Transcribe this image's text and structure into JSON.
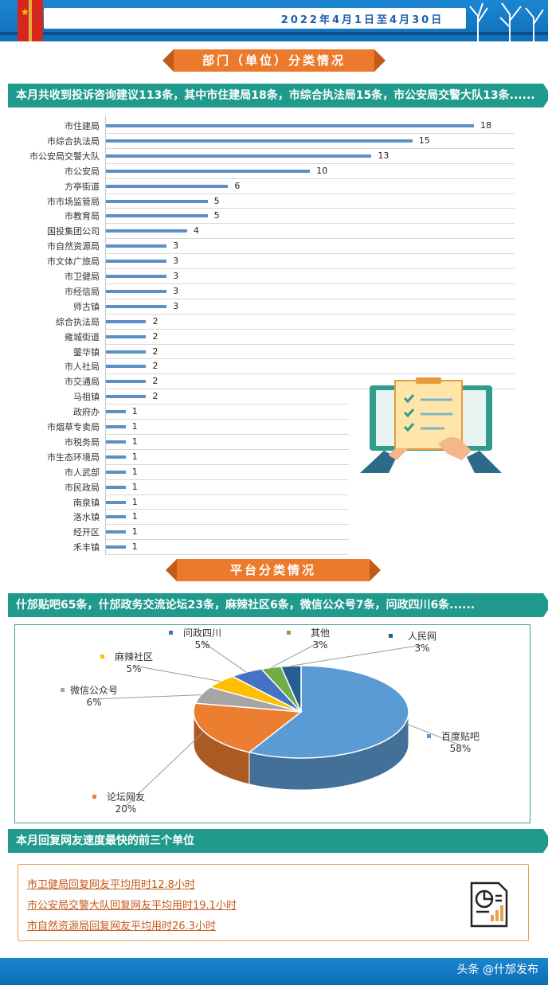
{
  "header": {
    "date": "2022年4月1日至4月30日"
  },
  "section1": {
    "banner": "部门（单位）分类情况",
    "summary": "本月共收到投诉咨询建议113条，其中市住建局18条，市综合执法局15条，市公安局交警大队13条......"
  },
  "section2": {
    "banner": "平台分类情况",
    "summary": "什邡贴吧65条，什邡政务交流论坛23条，麻辣社区6条，微信公众号7条，问政四川6条......"
  },
  "section3": {
    "title": "本月回复网友速度最快的前三个单位",
    "items": [
      "市卫健局回复网友平均用时12.8小时",
      "市公安局交警大队回复网友平均用时19.1小时",
      "市自然资源局回复网友平均用时26.3小时"
    ]
  },
  "footer": {
    "watermark": "头条 @什邡发布"
  },
  "colors": {
    "bar": "#5b8fc7",
    "teal": "#1f9a8c",
    "orange": "#ec7a2c"
  },
  "chart_data": [
    {
      "type": "bar",
      "orientation": "horizontal",
      "categories": [
        "市住建局",
        "市综合执法局",
        "市公安局交警大队",
        "市公安局",
        "方亭街道",
        "市市场监管局",
        "市教育局",
        "国投集团公司",
        "市自然资源局",
        "市文体广旅局",
        "市卫健局",
        "市经信局",
        "师古镇",
        "综合执法局",
        "雍城街道",
        "蓥华镇",
        "市人社局",
        "市交通局",
        "马祖镇",
        "政府办",
        "市烟草专卖局",
        "市税务局",
        "市生态环境局",
        "市人武部",
        "市民政局",
        "南泉镇",
        "洛水镇",
        "经开区",
        "禾丰镇"
      ],
      "values": [
        18,
        15,
        13,
        10,
        6,
        5,
        5,
        4,
        3,
        3,
        3,
        3,
        3,
        2,
        2,
        2,
        2,
        2,
        2,
        1,
        1,
        1,
        1,
        1,
        1,
        1,
        1,
        1,
        1
      ],
      "xlim": [
        0,
        18
      ],
      "grid": true
    },
    {
      "type": "pie",
      "labels": [
        "百度贴吧",
        "论坛网友",
        "微信公众号",
        "麻辣社区",
        "问政四川",
        "其他",
        "人民网"
      ],
      "values": [
        58,
        20,
        6,
        5,
        5,
        3,
        3
      ],
      "value_labels": [
        "58%",
        "20%",
        "6%",
        "5%",
        "5%",
        "3%",
        "3%"
      ],
      "colors": [
        "#5b9bd5",
        "#ed7d31",
        "#a5a5a5",
        "#ffc000",
        "#4472c4",
        "#70ad47",
        "#255e91"
      ]
    }
  ]
}
